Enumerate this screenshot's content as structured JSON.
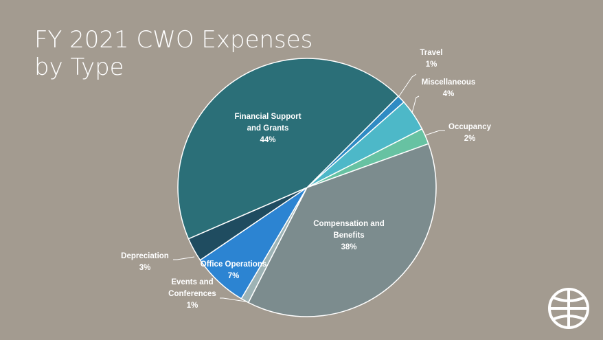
{
  "chart_data": {
    "type": "pie",
    "title": "FY 2021 CWO Expenses by Type",
    "categories": [
      "Travel",
      "Miscellaneous",
      "Occupancy",
      "Compensation and Benefits",
      "Events and Conferences",
      "Office Operations",
      "Depreciation",
      "Financial Support and Grants"
    ],
    "values": [
      1,
      4,
      2,
      38,
      1,
      7,
      3,
      44
    ],
    "value_labels": [
      "1%",
      "4%",
      "2%",
      "38%",
      "1%",
      "7%",
      "3%",
      "44%"
    ],
    "colors": [
      "#2f8bc4",
      "#4db8c8",
      "#67c2a2",
      "#7c8c8e",
      "#9db3b5",
      "#2c84d2",
      "#1f4c60",
      "#2b6f78"
    ]
  }
}
